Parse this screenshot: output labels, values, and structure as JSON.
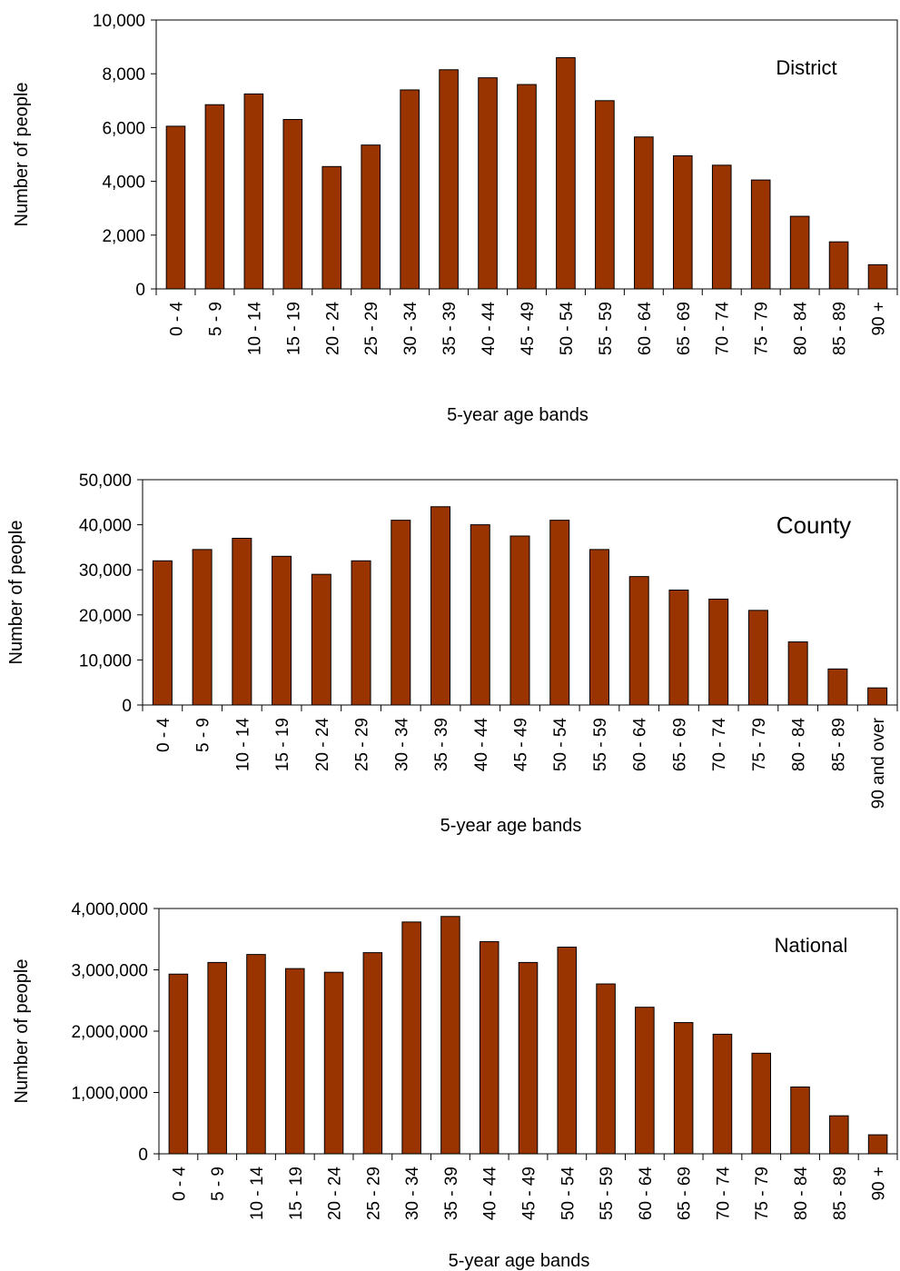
{
  "bar_color": "#993300",
  "chart_data": [
    {
      "type": "bar",
      "annotation": "District",
      "xlabel": "5-year age bands",
      "ylabel": "Number of people",
      "ylim": [
        0,
        10000
      ],
      "yticks": [
        "0",
        "2,000",
        "4,000",
        "6,000",
        "8,000",
        "10,000"
      ],
      "ytick_values": [
        0,
        2000,
        4000,
        6000,
        8000,
        10000
      ],
      "categories": [
        "0 - 4",
        "5 - 9",
        "10 - 14",
        "15 - 19",
        "20 - 24",
        "25 - 29",
        "30 - 34",
        "35 - 39",
        "40 - 44",
        "45 - 49",
        "50 - 54",
        "55 - 59",
        "60 - 64",
        "65 - 69",
        "70 - 74",
        "75 - 79",
        "80 - 84",
        "85 - 89",
        "90 +"
      ],
      "values": [
        6050,
        6850,
        7250,
        6300,
        4550,
        5350,
        7400,
        8150,
        7850,
        7600,
        8600,
        7000,
        5650,
        4950,
        4600,
        4050,
        2700,
        1750,
        900
      ],
      "grid": false
    },
    {
      "type": "bar",
      "annotation": "County",
      "xlabel": "5-year age bands",
      "ylabel": "Number of people",
      "ylim": [
        0,
        50000
      ],
      "yticks": [
        "0",
        "10,000",
        "20,000",
        "30,000",
        "40,000",
        "50,000"
      ],
      "ytick_values": [
        0,
        10000,
        20000,
        30000,
        40000,
        50000
      ],
      "categories": [
        "0 - 4",
        "5 - 9",
        "10 - 14",
        "15 - 19",
        "20 - 24",
        "25 - 29",
        "30 - 34",
        "35 - 39",
        "40 - 44",
        "45 - 49",
        "50 - 54",
        "55 - 59",
        "60 - 64",
        "65 - 69",
        "70 - 74",
        "75 - 79",
        "80 - 84",
        "85 - 89",
        "90 and over"
      ],
      "values": [
        32000,
        34500,
        37000,
        33000,
        29000,
        32000,
        41000,
        44000,
        40000,
        37500,
        41000,
        34500,
        28500,
        25500,
        23500,
        21000,
        14000,
        8000,
        3800
      ],
      "grid": false
    },
    {
      "type": "bar",
      "annotation": "National",
      "xlabel": "5-year age bands",
      "ylabel": "Number of people",
      "ylim": [
        0,
        4000000
      ],
      "yticks": [
        "0",
        "1,000,000",
        "2,000,000",
        "3,000,000",
        "4,000,000"
      ],
      "ytick_values": [
        0,
        1000000,
        2000000,
        3000000,
        4000000
      ],
      "categories": [
        "0 - 4",
        "5 - 9",
        "10 - 14",
        "15 - 19",
        "20 - 24",
        "25 - 29",
        "30 - 34",
        "35 - 39",
        "40 - 44",
        "45 - 49",
        "50 - 54",
        "55 - 59",
        "60 - 64",
        "65 - 69",
        "70 - 74",
        "75 - 79",
        "80 - 84",
        "85 - 89",
        "90 +"
      ],
      "values": [
        2930000,
        3120000,
        3250000,
        3020000,
        2960000,
        3280000,
        3780000,
        3870000,
        3460000,
        3120000,
        3370000,
        2770000,
        2390000,
        2140000,
        1950000,
        1640000,
        1090000,
        620000,
        310000
      ],
      "grid": false
    }
  ]
}
